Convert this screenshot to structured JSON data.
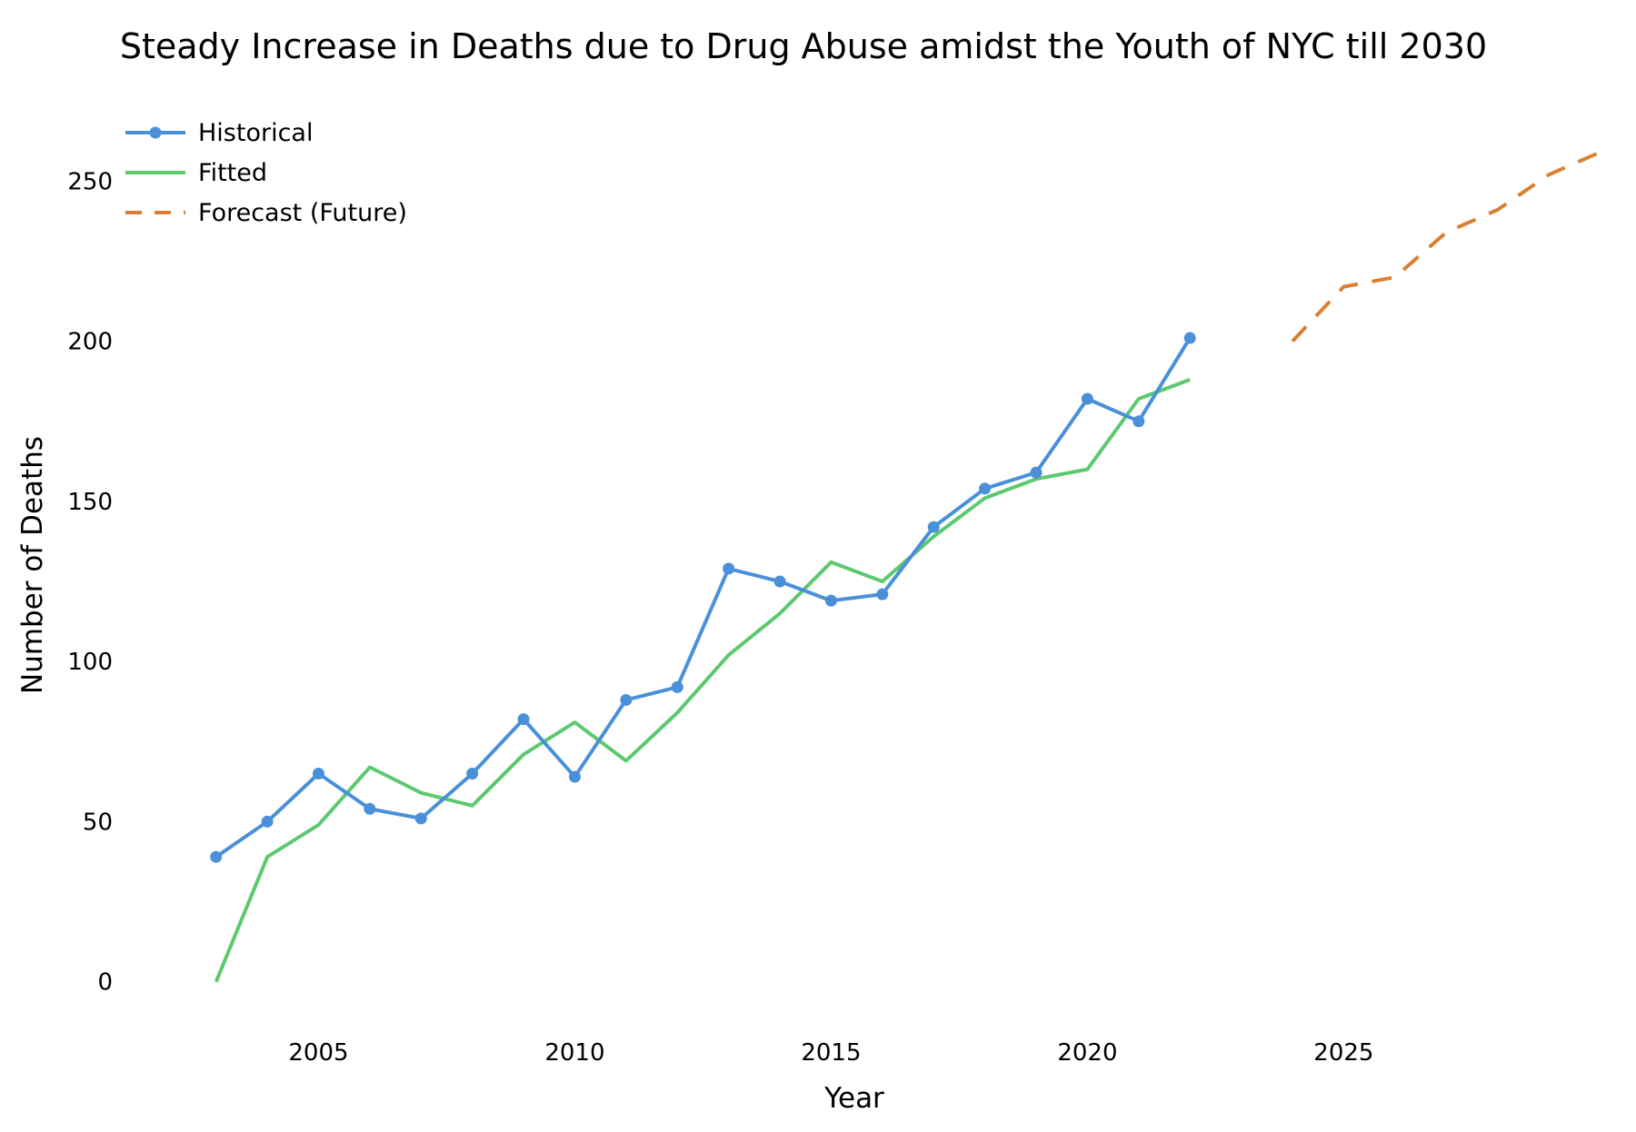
{
  "chart_data": {
    "type": "line",
    "title": "Steady Increase in Deaths due to Drug Abuse amidst the Youth of NYC till 2030",
    "xlabel": "Year",
    "ylabel": "Number of Deaths",
    "xlim": [
      2001.8,
      2030.1
    ],
    "ylim": [
      -12,
      262
    ],
    "xticks": [
      2005,
      2010,
      2015,
      2020,
      2025
    ],
    "yticks": [
      0,
      50,
      100,
      150,
      200,
      250
    ],
    "grid": false,
    "legend_position": "top-left",
    "series": [
      {
        "name": "Historical",
        "color": "#4a90d9",
        "style": "solid",
        "markers": true,
        "x": [
          2003,
          2004,
          2005,
          2006,
          2007,
          2008,
          2009,
          2010,
          2011,
          2012,
          2013,
          2014,
          2015,
          2016,
          2017,
          2018,
          2019,
          2020,
          2021,
          2022
        ],
        "y": [
          39,
          50,
          65,
          54,
          51,
          65,
          82,
          64,
          88,
          92,
          129,
          125,
          119,
          121,
          142,
          154,
          159,
          182,
          175,
          201
        ]
      },
      {
        "name": "Fitted",
        "color": "#5cc96e",
        "style": "solid",
        "markers": false,
        "x": [
          2003,
          2004,
          2005,
          2006,
          2007,
          2008,
          2009,
          2010,
          2011,
          2012,
          2013,
          2014,
          2015,
          2016,
          2017,
          2018,
          2019,
          2020,
          2021,
          2022
        ],
        "y": [
          0,
          39,
          49,
          67,
          59,
          55,
          71,
          81,
          69,
          84,
          102,
          115,
          131,
          125,
          139,
          151,
          157,
          160,
          182,
          188
        ]
      },
      {
        "name": "Forecast (Future)",
        "color": "#d98032",
        "style": "dashed",
        "markers": false,
        "x": [
          2024,
          2025,
          2026,
          2027,
          2028,
          2029,
          2030
        ],
        "y": [
          200,
          217,
          220,
          234,
          241,
          252,
          259
        ]
      }
    ]
  }
}
